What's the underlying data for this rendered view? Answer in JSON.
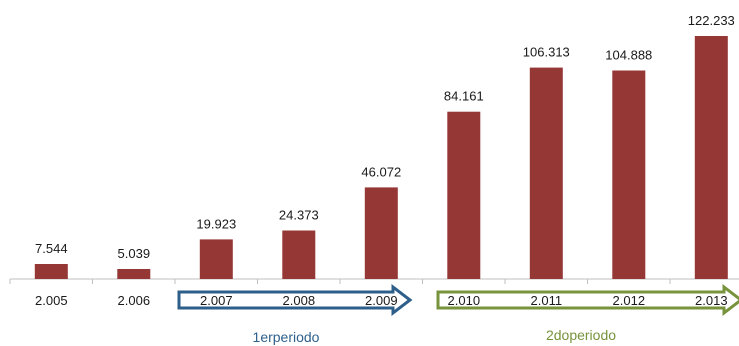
{
  "chart_data": {
    "type": "bar",
    "categories": [
      "2.005",
      "2.006",
      "2.007",
      "2.008",
      "2.009",
      "2.010",
      "2.011",
      "2.012",
      "2.013"
    ],
    "values": [
      7544,
      5039,
      19923,
      24373,
      46072,
      84161,
      106313,
      104888,
      122233
    ],
    "value_labels": [
      "7.544",
      "5.039",
      "19.923",
      "24.373",
      "46.072",
      "84.161",
      "106.313",
      "104.888",
      "122.233"
    ],
    "title": "",
    "xlabel": "",
    "ylabel": "",
    "ylim": [
      0,
      122233
    ],
    "grid": false,
    "legend": "none",
    "bar_color": "#953735",
    "annotations": [
      {
        "label": "1erperiodo",
        "from_category": "2.007",
        "to_category": "2.009",
        "color": "#2e5f8a"
      },
      {
        "label": "2doperiodo",
        "from_category": "2.010",
        "to_category": "2.013",
        "color": "#77933c"
      }
    ]
  }
}
